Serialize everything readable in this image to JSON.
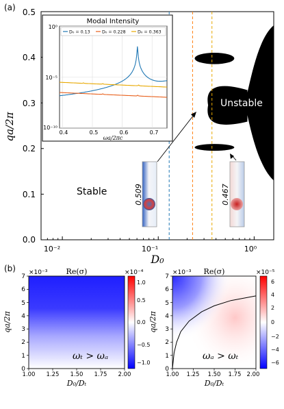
{
  "panel_labels": {
    "a": "(a)",
    "b": "(b)"
  },
  "main": {
    "ylabel": "qa/2π",
    "xlabel": "D₀",
    "y_ticks": [
      "0.0",
      "0.1",
      "0.2",
      "0.3",
      "0.4",
      "0.5"
    ],
    "x_ticks": [
      "10⁻²",
      "10⁻¹",
      "10⁰"
    ],
    "region_stable": "Stable",
    "region_unstable": "Unstable",
    "cell_label_1": "0.509",
    "cell_label_2": "0.467",
    "colors": {
      "blue_line": "#1f77b4",
      "orange_line": "#ff7f0e",
      "yellow_line": "#e8a800",
      "fill": "#000000"
    }
  },
  "inset": {
    "title": "Modal Intensity",
    "xlabel": "ωa/2πc",
    "y_ticks": [
      "10⁰",
      "10⁻⁵",
      "10⁻¹⁰"
    ],
    "x_ticks": [
      "0.4",
      "0.5",
      "0.6",
      "0.7"
    ],
    "legend": [
      "D₀ = 0.13",
      "D₀ = 0.228",
      "D₀ = 0.363"
    ]
  },
  "panel_b_left": {
    "title": "Re(σ)",
    "y_exp": "×10⁻³",
    "cbar_exp": "×10⁻⁴",
    "ylabel": "qa/2π",
    "xlabel": "D₀/Dₜ",
    "x_ticks": [
      "1.00",
      "1.25",
      "1.50",
      "1.75",
      "2.00"
    ],
    "y_ticks": [
      "0",
      "1",
      "2",
      "3",
      "4",
      "5",
      "6",
      "7"
    ],
    "cbar_ticks": [
      "1.0",
      "0.5",
      "0.0",
      "−0.5",
      "−1.0"
    ],
    "annotation": "ωₜ > ωₐ"
  },
  "panel_b_right": {
    "title": "Re(σ)",
    "y_exp": "×10⁻³",
    "cbar_exp": "×10⁻⁵",
    "ylabel": "qa/2π",
    "xlabel": "D₀/Dₜ",
    "x_ticks": [
      "1.00",
      "1.25",
      "1.50",
      "1.75",
      "2.00"
    ],
    "y_ticks": [
      "0",
      "1",
      "2",
      "3",
      "4",
      "5",
      "6",
      "7"
    ],
    "cbar_ticks": [
      "6",
      "4",
      "2",
      "0",
      "−2",
      "−4",
      "−6"
    ],
    "annotation": "ωₐ > ωₜ"
  },
  "chart_data": [
    {
      "type": "area",
      "title": "",
      "xlabel": "D₀",
      "ylabel": "qa/2π",
      "xscale": "log",
      "xlim": [
        0.006,
        1.6
      ],
      "ylim": [
        0,
        0.5
      ],
      "vertical_lines": [
        {
          "x": 0.13,
          "color": "#1f77b4"
        },
        {
          "x": 0.228,
          "color": "#ff7f0e"
        },
        {
          "x": 0.363,
          "color": "#e8a800"
        }
      ],
      "unstable_regions": [
        {
          "x": [
            0.24,
            0.62
          ],
          "y": [
            0.385,
            0.41
          ]
        },
        {
          "x": [
            0.24,
            0.62
          ],
          "y": [
            0.195,
            0.21
          ]
        },
        {
          "x": [
            0.3,
            0.85
          ],
          "y": [
            0.25,
            0.34
          ]
        },
        {
          "x": [
            0.8,
            1.6
          ],
          "y": [
            0.13,
            0.47
          ]
        }
      ]
    },
    {
      "type": "line",
      "title": "Modal Intensity",
      "xlabel": "ωa/2πc",
      "yscale": "log",
      "xlim": [
        0.39,
        0.75
      ],
      "ylim": [
        1e-10,
        1
      ],
      "series": [
        {
          "name": "D₀ = 0.13",
          "color": "#1f77b4",
          "peaks": [
            0.651
          ]
        },
        {
          "name": "D₀ = 0.228",
          "color": "#e8601c",
          "peaks": [
            0.535,
            0.652
          ]
        },
        {
          "name": "D₀ = 0.363",
          "color": "#e8a800",
          "peaks": [
            0.47,
            0.535,
            0.655
          ]
        }
      ]
    },
    {
      "type": "heatmap",
      "title": "Re(σ)",
      "xlabel": "D₀/Dₜ",
      "ylabel": "qa/2π",
      "xlim": [
        1.0,
        2.0
      ],
      "ylim": [
        0,
        7
      ],
      "colorbar_range": [
        -1.3,
        1.3
      ]
    },
    {
      "type": "heatmap",
      "title": "Re(σ)",
      "xlabel": "D₀/Dₜ",
      "ylabel": "qa/2π",
      "xlim": [
        1.0,
        2.0
      ],
      "ylim": [
        0,
        7
      ],
      "colorbar_range": [
        -7,
        7
      ],
      "boundary_curve": {
        "x": [
          1.0,
          1.02,
          1.05,
          1.1,
          1.2,
          1.35,
          1.5,
          1.7,
          2.0
        ],
        "y": [
          0.0,
          1.2,
          2.0,
          2.8,
          3.6,
          4.3,
          4.75,
          5.15,
          5.5
        ]
      }
    }
  ]
}
